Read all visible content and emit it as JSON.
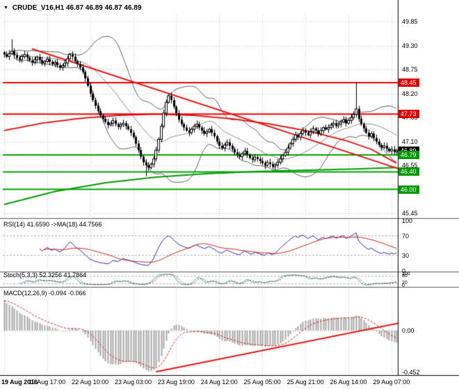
{
  "window": {
    "dropdown_glyph": "▼",
    "title_symbol": "CRUDE_V16,H1",
    "title_ohlc": "46.87 46.89 46.87 46.89"
  },
  "colors": {
    "bg": "#ffffff",
    "grid": "#c9c9c9",
    "grid_dash": "#b6b6b6",
    "candle": "#000000",
    "candle_up_fill": "#ffffff",
    "bollinger": "#5f5f5f",
    "boll_mid": "#8f8f8f",
    "ma_red": "#dd2020",
    "ma_green": "#009a00",
    "trend": "#ee1010",
    "level_red": "#f20000",
    "level_green": "#00a400",
    "tag_red": "#e00000",
    "tag_green": "#009900",
    "tag_current": "#000000",
    "rsi": "#2a2aa0",
    "rsi_ma": "#cc2222",
    "stoch": "#2ab2b2",
    "stoch_sig": "#cc2222",
    "macd_hist": "#a6a6a6",
    "macd_sig": "#cc2222",
    "sep": "#555555",
    "axis_line": "#000000"
  },
  "price_axis": {
    "plain": [
      {
        "label": "49.85",
        "value": 49.85
      },
      {
        "label": "49.30",
        "value": 49.3
      },
      {
        "label": "48.75",
        "value": 48.75
      },
      {
        "label": "48.20",
        "value": 48.2
      },
      {
        "label": "47.65",
        "value": 47.65
      },
      {
        "label": "47.10",
        "value": 47.1
      },
      {
        "label": "46.55",
        "value": 46.55
      },
      {
        "label": "45.45",
        "value": 45.45
      }
    ],
    "tags": [
      {
        "label": "48.45",
        "value": 48.45,
        "type": "red"
      },
      {
        "label": "47.73",
        "value": 47.73,
        "type": "red"
      },
      {
        "label": "46.89",
        "value": 46.89,
        "type": "current"
      },
      {
        "label": "46.79",
        "value": 46.79,
        "type": "green"
      },
      {
        "label": "46.40",
        "value": 46.4,
        "type": "green"
      },
      {
        "label": "46.00",
        "value": 46.0,
        "type": "green"
      }
    ]
  },
  "indicators": {
    "rsi_label": "RSI(14) 41.6590 ->MA(18) 44.7566",
    "stoch_label": "Stoch(5,3,3) 52.3256 41.7864",
    "macd_label": "MACD(12,26,9) -0.094 -0.066",
    "rsi_axis": [
      {
        "label": "100",
        "value": 100
      },
      {
        "label": "70",
        "value": 70
      },
      {
        "label": "30",
        "value": 30
      },
      {
        "label": "0",
        "value": 0
      }
    ],
    "stoch_axis": [
      {
        "label": "100",
        "value": 100
      },
      {
        "label": "80",
        "value": 80
      },
      {
        "label": "20",
        "value": 20
      },
      {
        "label": "0",
        "value": 0
      }
    ],
    "macd_axis": [
      {
        "label": "0.00",
        "value": 0.0
      },
      {
        "label": "-0.452",
        "value": -0.452
      }
    ]
  },
  "time_axis": {
    "labels": [
      "19 Aug 2016",
      "19 Aug 17:00",
      "22 Aug 10:00",
      "23 Aug 03:00",
      "23 Aug 19:00",
      "24 Aug 12:00",
      "25 Aug 05:00",
      "25 Aug 21:00",
      "26 Aug 14:00",
      "29 Aug 07:00"
    ]
  },
  "chart_data": {
    "type": "candlestick",
    "symbol": "CRUDE_V16",
    "timeframe": "H1",
    "current_bar": {
      "open": 46.87,
      "high": 46.89,
      "low": 46.87,
      "close": 46.89
    },
    "price_range": [
      45.37,
      50.0
    ],
    "macd_range": [
      -0.47,
      0.45
    ],
    "first_open": 49.15,
    "closes": [
      49.1,
      49.05,
      49.12,
      49.18,
      49.08,
      49.02,
      48.98,
      49.05,
      49.1,
      49.03,
      48.96,
      48.92,
      48.98,
      49.04,
      48.97,
      48.9,
      48.94,
      48.99,
      48.93,
      48.88,
      48.92,
      48.85,
      48.8,
      48.84,
      48.9,
      49.0,
      49.1,
      49.05,
      48.95,
      48.88,
      48.8,
      48.7,
      48.55,
      48.38,
      48.2,
      48.05,
      47.92,
      47.8,
      47.7,
      47.62,
      47.55,
      47.48,
      47.52,
      47.58,
      47.5,
      47.44,
      47.48,
      47.52,
      47.45,
      47.38,
      47.3,
      47.2,
      47.05,
      46.9,
      46.75,
      46.62,
      46.55,
      46.5,
      46.58,
      46.7,
      46.9,
      47.15,
      47.45,
      47.75,
      48.0,
      48.15,
      48.05,
      47.9,
      47.75,
      47.6,
      47.5,
      47.42,
      47.35,
      47.3,
      47.38,
      47.45,
      47.5,
      47.42,
      47.35,
      47.28,
      47.32,
      47.38,
      47.3,
      47.22,
      47.1,
      47.0,
      46.95,
      47.02,
      47.08,
      47.0,
      46.92,
      46.85,
      46.8,
      46.75,
      46.82,
      46.88,
      46.8,
      46.72,
      46.68,
      46.74,
      46.7,
      46.65,
      46.6,
      46.55,
      46.62,
      46.58,
      46.52,
      46.56,
      46.62,
      46.7,
      46.78,
      46.85,
      46.95,
      47.05,
      47.15,
      47.25,
      47.2,
      47.28,
      47.35,
      47.3,
      47.25,
      47.32,
      47.4,
      47.35,
      47.28,
      47.35,
      47.42,
      47.38,
      47.42,
      47.48,
      47.52,
      47.46,
      47.5,
      47.55,
      47.6,
      47.52,
      47.58,
      47.65,
      47.72,
      47.85,
      47.62,
      47.5,
      47.4,
      47.3,
      47.22,
      47.28,
      47.18,
      47.1,
      47.02,
      46.96,
      47.0,
      46.93,
      46.88,
      46.92,
      46.86,
      46.89
    ],
    "wick_overrides": {
      "3": {
        "h": 49.45
      },
      "56": {
        "l": 46.3
      },
      "139": {
        "h": 48.45
      }
    },
    "tick_bars": [
      0,
      17,
      34,
      51,
      68,
      85,
      102,
      119,
      136,
      153
    ],
    "levels": [
      {
        "value": 48.45,
        "color": "red"
      },
      {
        "value": 47.73,
        "color": "red"
      },
      {
        "value": 46.79,
        "color": "green"
      },
      {
        "value": 46.4,
        "color": "green"
      },
      {
        "value": 46.0,
        "color": "green"
      }
    ],
    "trendline_main": {
      "from": [
        11,
        49.23
      ],
      "to": [
        156,
        46.47
      ]
    },
    "trendline_macd": {
      "from": [
        60,
        -0.45
      ],
      "to": [
        156,
        0.08
      ]
    },
    "ma_red": [
      [
        0,
        47.35
      ],
      [
        15,
        47.52
      ],
      [
        30,
        47.63
      ],
      [
        45,
        47.7
      ],
      [
        60,
        47.73
      ],
      [
        75,
        47.7
      ],
      [
        90,
        47.62
      ],
      [
        105,
        47.5
      ],
      [
        120,
        47.34
      ],
      [
        135,
        47.12
      ],
      [
        145,
        46.92
      ],
      [
        155,
        46.6
      ]
    ],
    "ma_green": [
      [
        0,
        45.65
      ],
      [
        20,
        45.95
      ],
      [
        40,
        46.15
      ],
      [
        60,
        46.28
      ],
      [
        80,
        46.36
      ],
      [
        100,
        46.41
      ],
      [
        120,
        46.44
      ],
      [
        140,
        46.47
      ],
      [
        155,
        46.5
      ]
    ],
    "bollinger": {
      "period": 20,
      "deviation": 2
    },
    "rsi": {
      "period": 14,
      "ma_period": 18,
      "value": 41.659,
      "ma_value": 44.7566,
      "levels": [
        70,
        30
      ]
    },
    "stoch": {
      "k": 5,
      "d": 3,
      "slowing": 3,
      "value": 52.3256,
      "signal_value": 41.7864,
      "levels": [
        80,
        20
      ]
    },
    "macd": {
      "fast": 12,
      "slow": 26,
      "signal": 9,
      "value": -0.094,
      "signal_value": -0.066,
      "seed_offset": 0.35
    }
  }
}
